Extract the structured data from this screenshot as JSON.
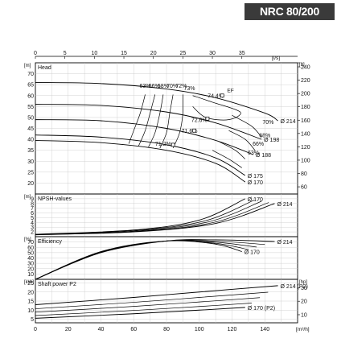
{
  "page_title": "NRC 80/200",
  "chart_data": [
    {
      "type": "line",
      "panel": "head",
      "title": "Head",
      "xlabel": "[l/s]",
      "ylabel": "[m]",
      "ylabel_right": "[ft]",
      "x_top_ticks": [
        0,
        5,
        10,
        15,
        20,
        25,
        30,
        35
      ],
      "x_bottom_ticks": [
        0,
        20,
        40,
        60,
        80,
        100,
        120,
        140
      ],
      "x_bottom_unit": "[m³/h]",
      "ylim": [
        15,
        75
      ],
      "yticks": [
        20,
        25,
        30,
        35,
        40,
        45,
        50,
        55,
        60,
        65,
        70
      ],
      "yticks_right": [
        60,
        80,
        100,
        120,
        140,
        160,
        180,
        200,
        220,
        240
      ],
      "xlim_m3h": [
        0,
        160
      ],
      "grid": true,
      "series": [
        {
          "name": "Ø 214",
          "x": [
            0,
            40,
            80,
            110,
            140,
            148
          ],
          "y": [
            66,
            65.5,
            63,
            59,
            52,
            48.5
          ]
        },
        {
          "name": "Ø 198",
          "x": [
            0,
            40,
            80,
            110,
            138
          ],
          "y": [
            56,
            55.5,
            52.5,
            47.5,
            40
          ]
        },
        {
          "name": "Ø 188",
          "x": [
            0,
            40,
            80,
            110,
            133
          ],
          "y": [
            49,
            48.5,
            45,
            39.5,
            33
          ]
        },
        {
          "name": "Ø 175",
          "x": [
            0,
            40,
            80,
            110,
            128
          ],
          "y": [
            42,
            41,
            37.5,
            31.5,
            23.5
          ]
        },
        {
          "name": "Ø 170",
          "x": [
            0,
            40,
            80,
            110,
            128
          ],
          "y": [
            39.5,
            38.5,
            35,
            29,
            20.5
          ]
        }
      ],
      "efficiency_labels": [
        "63%",
        "66%",
        "68%",
        "70%",
        "72%",
        "73%",
        "74.4%",
        "72.6%",
        "71.6%",
        "71.2%",
        "70%",
        "68%",
        "66%",
        "63%"
      ],
      "bep_label": "EF"
    },
    {
      "type": "line",
      "panel": "npsh",
      "title": "NPSH-values",
      "ylabel": "[m]",
      "ylim": [
        1,
        10
      ],
      "yticks": [
        2,
        3,
        4,
        5,
        6,
        7,
        8,
        9
      ],
      "series": [
        {
          "name": "Ø 170",
          "x": [
            0,
            60,
            100,
            128
          ],
          "y": [
            1.5,
            2.4,
            4.5,
            9
          ]
        },
        {
          "name": "Ø 214",
          "x": [
            0,
            60,
            110,
            146
          ],
          "y": [
            1.4,
            2.0,
            3.8,
            8
          ]
        }
      ]
    },
    {
      "type": "line",
      "panel": "efficiency",
      "title": "Efficiency",
      "ylabel": "[%]",
      "ylim": [
        0,
        80
      ],
      "yticks": [
        10,
        20,
        30,
        40,
        50,
        60,
        70
      ],
      "series": [
        {
          "name": "Ø 214",
          "x": [
            0,
            40,
            80,
            110,
            146
          ],
          "y": [
            0,
            50,
            72,
            74,
            71
          ]
        },
        {
          "name": "Ø 170",
          "x": [
            0,
            40,
            80,
            110,
            126
          ],
          "y": [
            0,
            52,
            72,
            66,
            52
          ]
        }
      ]
    },
    {
      "type": "line",
      "panel": "power",
      "title": "Shaft power P2",
      "ylabel": "[kW]",
      "ylabel_right": "[hp]",
      "ylim": [
        3,
        27
      ],
      "yticks": [
        5,
        10,
        15,
        20,
        25
      ],
      "yticks_right": [
        10,
        20,
        30
      ],
      "series": [
        {
          "name": "Ø 214 (P2)",
          "x": [
            0,
            60,
            100,
            148
          ],
          "y": [
            13,
            17,
            20,
            23.5
          ]
        },
        {
          "name": "Ø 170 (P2)",
          "x": [
            0,
            60,
            100,
            128
          ],
          "y": [
            5.5,
            8,
            10,
            11.5
          ]
        }
      ]
    }
  ]
}
